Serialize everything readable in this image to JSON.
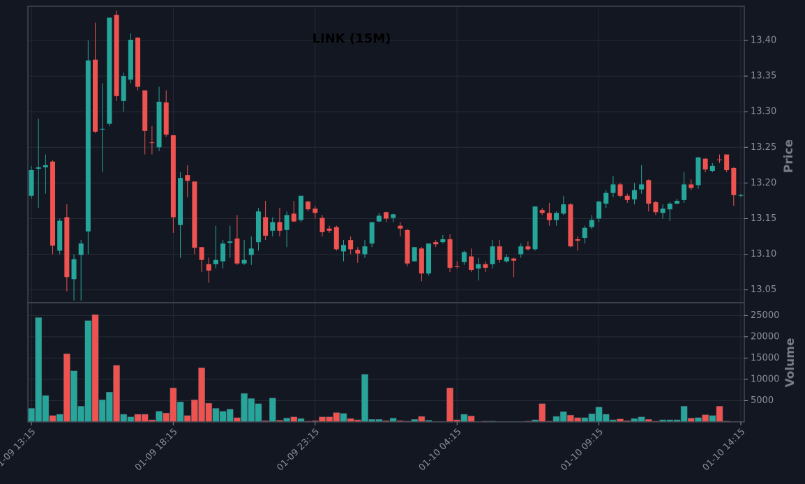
{
  "chart_data": {
    "type": "candlestick",
    "title": "LINK (15M)",
    "ylabel": "Price",
    "y2label": "Volume",
    "up_color": "#26a69a",
    "down_color": "#ef5350",
    "grid": true,
    "x": [
      "01-09 13:15",
      "01-09 13:30",
      "01-09 13:45",
      "01-09 14:00",
      "01-09 14:15",
      "01-09 14:30",
      "01-09 14:45",
      "01-09 15:00",
      "01-09 15:15",
      "01-09 15:30",
      "01-09 15:45",
      "01-09 16:00",
      "01-09 16:15",
      "01-09 16:30",
      "01-09 16:45",
      "01-09 17:00",
      "01-09 17:15",
      "01-09 17:30",
      "01-09 17:45",
      "01-09 18:00",
      "01-09 18:15",
      "01-09 18:30",
      "01-09 18:45",
      "01-09 19:00",
      "01-09 19:15",
      "01-09 19:30",
      "01-09 19:45",
      "01-09 20:00",
      "01-09 20:15",
      "01-09 20:30",
      "01-09 20:45",
      "01-09 21:00",
      "01-09 21:15",
      "01-09 21:30",
      "01-09 21:45",
      "01-09 22:00",
      "01-09 22:15",
      "01-09 22:30",
      "01-09 22:45",
      "01-09 23:00",
      "01-09 23:15",
      "01-09 23:30",
      "01-09 23:45",
      "01-10 00:00",
      "01-10 00:15",
      "01-10 00:30",
      "01-10 00:45",
      "01-10 01:00",
      "01-10 01:15",
      "01-10 01:30",
      "01-10 01:45",
      "01-10 02:00",
      "01-10 02:15",
      "01-10 02:30",
      "01-10 02:45",
      "01-10 03:00",
      "01-10 03:15",
      "01-10 03:30",
      "01-10 03:45",
      "01-10 04:00",
      "01-10 04:15",
      "01-10 04:30",
      "01-10 04:45",
      "01-10 05:00",
      "01-10 05:15",
      "01-10 05:30",
      "01-10 05:45",
      "01-10 06:00",
      "01-10 06:15",
      "01-10 06:30",
      "01-10 06:45",
      "01-10 07:00",
      "01-10 07:15",
      "01-10 07:30",
      "01-10 07:45",
      "01-10 08:00",
      "01-10 08:15",
      "01-10 08:30",
      "01-10 08:45",
      "01-10 09:00",
      "01-10 09:15",
      "01-10 09:30",
      "01-10 09:45",
      "01-10 10:00",
      "01-10 10:15",
      "01-10 10:30",
      "01-10 10:45",
      "01-10 11:00",
      "01-10 11:15",
      "01-10 11:30",
      "01-10 11:45",
      "01-10 12:00",
      "01-10 12:15",
      "01-10 12:30",
      "01-10 12:45",
      "01-10 13:00",
      "01-10 13:15",
      "01-10 13:30",
      "01-10 13:45",
      "01-10 14:00",
      "01-10 14:15"
    ],
    "xticks": [
      "01-09 13:15",
      "01-09 18:15",
      "01-09 23:15",
      "01-10 04:15",
      "01-10 09:15",
      "01-10 14:15"
    ],
    "open": [
      13.182,
      13.22,
      13.222,
      13.23,
      13.105,
      13.152,
      13.065,
      13.099,
      13.132,
      13.373,
      13.275,
      13.283,
      13.436,
      13.315,
      13.345,
      13.404,
      13.33,
      13.257,
      13.25,
      13.313,
      13.267,
      13.141,
      13.211,
      13.202,
      13.11,
      13.086,
      13.086,
      13.09,
      13.116,
      13.122,
      13.087,
      13.099,
      13.117,
      13.152,
      13.133,
      13.145,
      13.134,
      13.157,
      13.148,
      13.174,
      13.164,
      13.151,
      13.136,
      13.138,
      13.104,
      13.12,
      13.106,
      13.1,
      13.115,
      13.146,
      13.159,
      13.151,
      13.14,
      13.134,
      13.09,
      13.108,
      13.073,
      13.117,
      13.117,
      13.121,
      13.083,
      13.089,
      13.097,
      13.08,
      13.086,
      13.086,
      13.111,
      13.09,
      13.094,
      13.1,
      13.111,
      13.107,
      13.162,
      13.158,
      13.148,
      13.157,
      13.17,
      13.121,
      13.123,
      13.138,
      13.15,
      13.171,
      13.186,
      13.198,
      13.182,
      13.177,
      13.191,
      13.204,
      13.173,
      13.158,
      13.163,
      13.171,
      13.176,
      13.198,
      13.197,
      13.234,
      13.217,
      13.233,
      13.24,
      13.221,
      13.182
    ],
    "high": [
      13.224,
      13.29,
      13.24,
      13.232,
      13.15,
      13.17,
      13.1,
      13.12,
      13.4,
      13.425,
      13.34,
      13.432,
      13.442,
      13.355,
      13.41,
      13.405,
      13.33,
      13.28,
      13.335,
      13.33,
      13.267,
      13.215,
      13.225,
      13.202,
      13.11,
      13.095,
      13.14,
      13.12,
      13.14,
      13.155,
      13.12,
      13.125,
      13.165,
      13.175,
      13.152,
      13.165,
      13.16,
      13.175,
      13.182,
      13.175,
      13.168,
      13.155,
      13.14,
      13.14,
      13.12,
      13.125,
      13.11,
      13.12,
      13.145,
      13.158,
      13.16,
      13.157,
      13.145,
      13.135,
      13.11,
      13.11,
      13.115,
      13.12,
      13.127,
      13.128,
      13.09,
      13.105,
      13.108,
      13.095,
      13.09,
      13.12,
      13.12,
      13.1,
      13.095,
      13.115,
      13.118,
      13.167,
      13.165,
      13.172,
      13.16,
      13.182,
      13.172,
      13.125,
      13.14,
      13.155,
      13.175,
      13.19,
      13.21,
      13.2,
      13.185,
      13.2,
      13.225,
      13.205,
      13.175,
      13.17,
      13.173,
      13.178,
      13.215,
      13.205,
      13.236,
      13.235,
      13.228,
      13.24,
      13.24,
      13.222,
      13.185
    ],
    "low": [
      13.178,
      13.165,
      13.185,
      13.1,
      13.1,
      13.048,
      13.035,
      13.035,
      13.1,
      13.27,
      13.215,
      13.28,
      13.315,
      13.3,
      13.34,
      13.33,
      13.24,
      13.24,
      13.245,
      13.265,
      13.13,
      13.095,
      13.18,
      13.1,
      13.075,
      13.06,
      13.08,
      13.08,
      13.095,
      13.085,
      13.085,
      13.085,
      13.105,
      13.12,
      13.125,
      13.125,
      13.11,
      13.145,
      13.145,
      13.16,
      13.15,
      13.125,
      13.13,
      13.105,
      13.09,
      13.1,
      13.088,
      13.095,
      13.11,
      13.145,
      13.145,
      13.145,
      13.125,
      13.083,
      13.09,
      13.062,
      13.07,
      13.11,
      13.115,
      13.075,
      13.08,
      13.085,
      13.075,
      13.063,
      13.075,
      13.08,
      13.088,
      13.088,
      13.068,
      13.095,
      13.105,
      13.105,
      13.155,
      13.14,
      13.14,
      13.155,
      13.11,
      13.105,
      13.115,
      13.135,
      13.145,
      13.165,
      13.18,
      13.18,
      13.172,
      13.17,
      13.185,
      13.16,
      13.155,
      13.15,
      13.147,
      13.17,
      13.172,
      13.19,
      13.192,
      13.215,
      13.215,
      13.228,
      13.215,
      13.168,
      13.18
    ],
    "close": [
      13.218,
      13.222,
      13.225,
      13.112,
      13.147,
      13.068,
      13.093,
      13.115,
      13.372,
      13.272,
      13.276,
      13.432,
      13.322,
      13.35,
      13.401,
      13.335,
      13.273,
      13.256,
      13.314,
      13.268,
      13.152,
      13.207,
      13.203,
      13.109,
      13.092,
      13.077,
      13.092,
      13.115,
      13.118,
      13.087,
      13.092,
      13.108,
      13.16,
      13.126,
      13.145,
      13.133,
      13.155,
      13.146,
      13.182,
      13.163,
      13.158,
      13.131,
      13.133,
      13.107,
      13.113,
      13.107,
      13.101,
      13.111,
      13.145,
      13.154,
      13.15,
      13.156,
      13.136,
      13.087,
      13.11,
      13.073,
      13.115,
      13.114,
      13.121,
      13.081,
      13.082,
      13.103,
      13.078,
      13.086,
      13.081,
      13.111,
      13.092,
      13.096,
      13.091,
      13.111,
      13.107,
      13.167,
      13.158,
      13.148,
      13.158,
      13.17,
      13.111,
      13.119,
      13.137,
      13.148,
      13.174,
      13.186,
      13.198,
      13.182,
      13.176,
      13.19,
      13.198,
      13.171,
      13.159,
      13.164,
      13.171,
      13.175,
      13.198,
      13.193,
      13.236,
      13.219,
      13.224,
      13.232,
      13.218,
      13.183,
      13.183
    ],
    "volume": [
      3200,
      24500,
      6200,
      1500,
      1800,
      16000,
      12000,
      3700,
      23800,
      25200,
      5200,
      7000,
      13300,
      1800,
      1200,
      1800,
      1800,
      500,
      2500,
      2100,
      8000,
      4700,
      1500,
      5200,
      12700,
      4400,
      3200,
      2500,
      3000,
      1000,
      6700,
      5500,
      4300,
      300,
      5600,
      400,
      900,
      1200,
      800,
      200,
      300,
      1200,
      1200,
      2200,
      2000,
      800,
      500,
      11200,
      600,
      600,
      300,
      900,
      300,
      200,
      600,
      1300,
      400,
      100,
      100,
      8000,
      500,
      1800,
      1400,
      100,
      200,
      200,
      100,
      100,
      100,
      100,
      200,
      500,
      4300,
      200,
      1300,
      2400,
      1600,
      1000,
      1000,
      1900,
      3500,
      1800,
      500,
      700,
      300,
      800,
      1200,
      600,
      200,
      500,
      500,
      500,
      3700,
      900,
      1000,
      1700,
      1500,
      3700,
      200,
      100,
      100
    ],
    "ylim": [
      13.032,
      13.448
    ],
    "yticks": [
      13.05,
      {
        "value": 13.1,
        "label": "13.10"
      },
      13.15,
      {
        "value": 13.2,
        "label": "13.20"
      },
      13.25,
      {
        "value": 13.3,
        "label": "13.30"
      },
      13.35,
      {
        "value": 13.4,
        "label": "13.40"
      }
    ],
    "y2lim": [
      0,
      28000
    ],
    "y2ticks": [
      5000,
      10000,
      15000,
      20000,
      25000
    ]
  }
}
